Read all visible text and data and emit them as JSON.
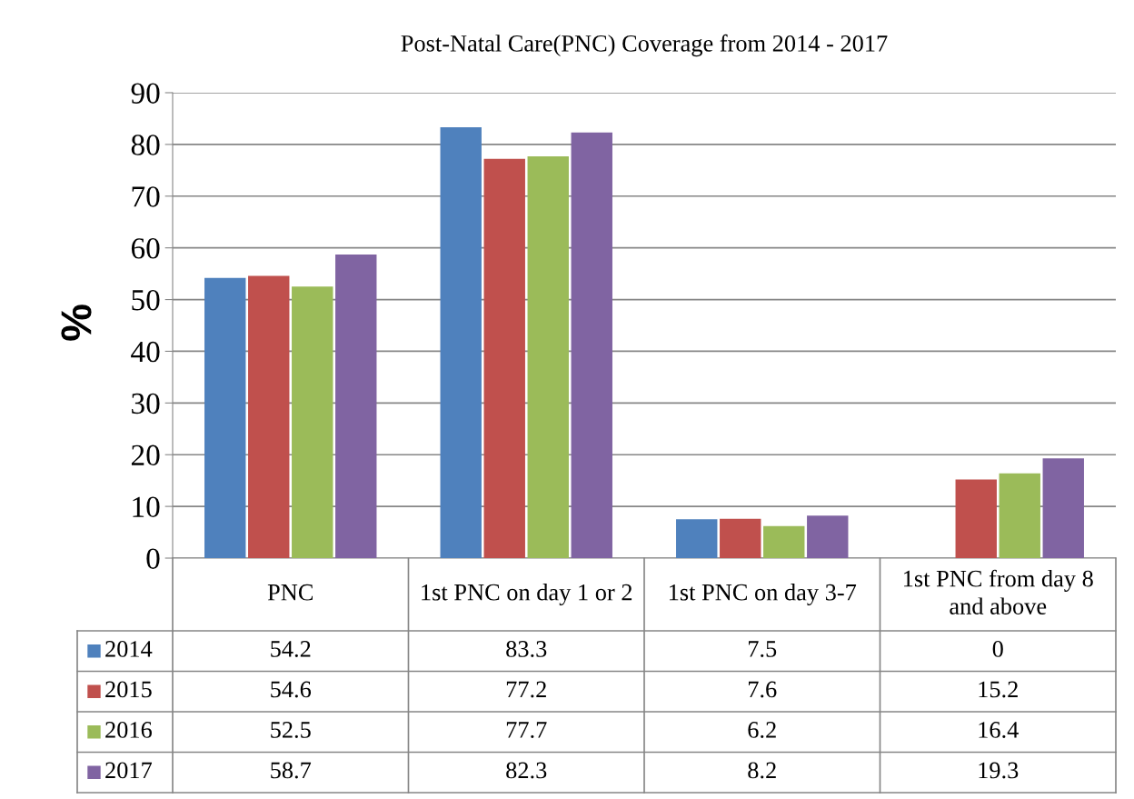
{
  "chart_data": {
    "type": "bar",
    "title": "Post-Natal Care(PNC) Coverage from 2014 - 2017",
    "ylabel": "%",
    "categories": [
      "PNC",
      "1st PNC on day 1 or 2",
      "1st PNC on day 3-7",
      "1st PNC from day 8 and above"
    ],
    "series": [
      {
        "name": "2014",
        "color": "#4f81bd",
        "values": [
          54.2,
          83.3,
          7.5,
          0
        ]
      },
      {
        "name": "2015",
        "color": "#c0504d",
        "values": [
          54.6,
          77.2,
          7.6,
          15.2
        ]
      },
      {
        "name": "2016",
        "color": "#9bbb59",
        "values": [
          52.5,
          77.7,
          6.2,
          16.4
        ]
      },
      {
        "name": "2017",
        "color": "#8064a2",
        "values": [
          58.7,
          82.3,
          8.2,
          19.3
        ]
      }
    ],
    "ylim": [
      0,
      90
    ],
    "yticks": [
      0,
      10,
      20,
      30,
      40,
      50,
      60,
      70,
      80,
      90
    ],
    "grid": "y",
    "legend": "bottom",
    "data_labels": true
  }
}
